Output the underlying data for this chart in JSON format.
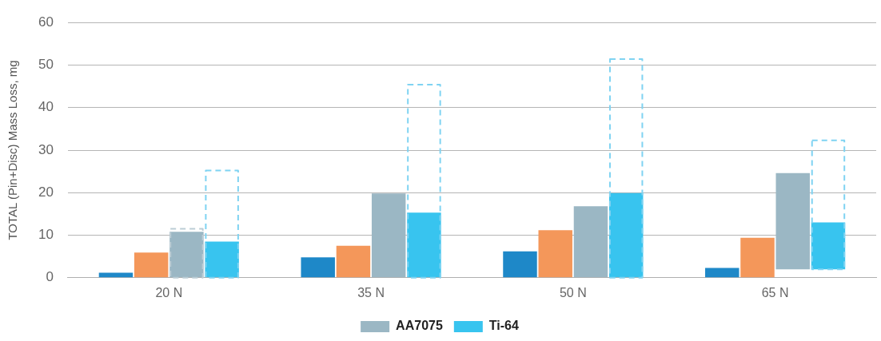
{
  "chart_data": {
    "type": "bar",
    "ylabel": "TOTAL (Pin+Disc) Mass Loss, mg",
    "categories": [
      "20 N",
      "35 N",
      "50 N",
      "65 N"
    ],
    "series": [
      {
        "color": "#1e88c8",
        "values": [
          1.2,
          4.8,
          6.2,
          2.3
        ]
      },
      {
        "color": "#f4975a",
        "values": [
          5.9,
          7.5,
          11.2,
          9.4
        ]
      },
      {
        "name": "AA7075",
        "color": "#9bb7c4",
        "values": [
          10.8,
          19.8,
          16.8,
          22.6
        ],
        "base": [
          0,
          0,
          0,
          2
        ]
      },
      {
        "color": "#bccdd5",
        "line_style": "dashed",
        "values": [
          11.5,
          null,
          null,
          null
        ]
      },
      {
        "name": "Ti-64",
        "color": "#38c4ef",
        "values": [
          8.5,
          15.3,
          19.9,
          11
        ],
        "base": [
          0,
          0,
          0,
          2
        ]
      },
      {
        "color": "#7fd3f2",
        "line_style": "dashed",
        "values": [
          25.2,
          45.4,
          51.4,
          30.3
        ],
        "base": [
          0,
          0,
          0,
          2
        ]
      }
    ],
    "ylim": [
      0,
      60
    ],
    "yticks": [
      0,
      10,
      20,
      30,
      40,
      50,
      60
    ],
    "grid": "y",
    "legend": "bottom"
  }
}
